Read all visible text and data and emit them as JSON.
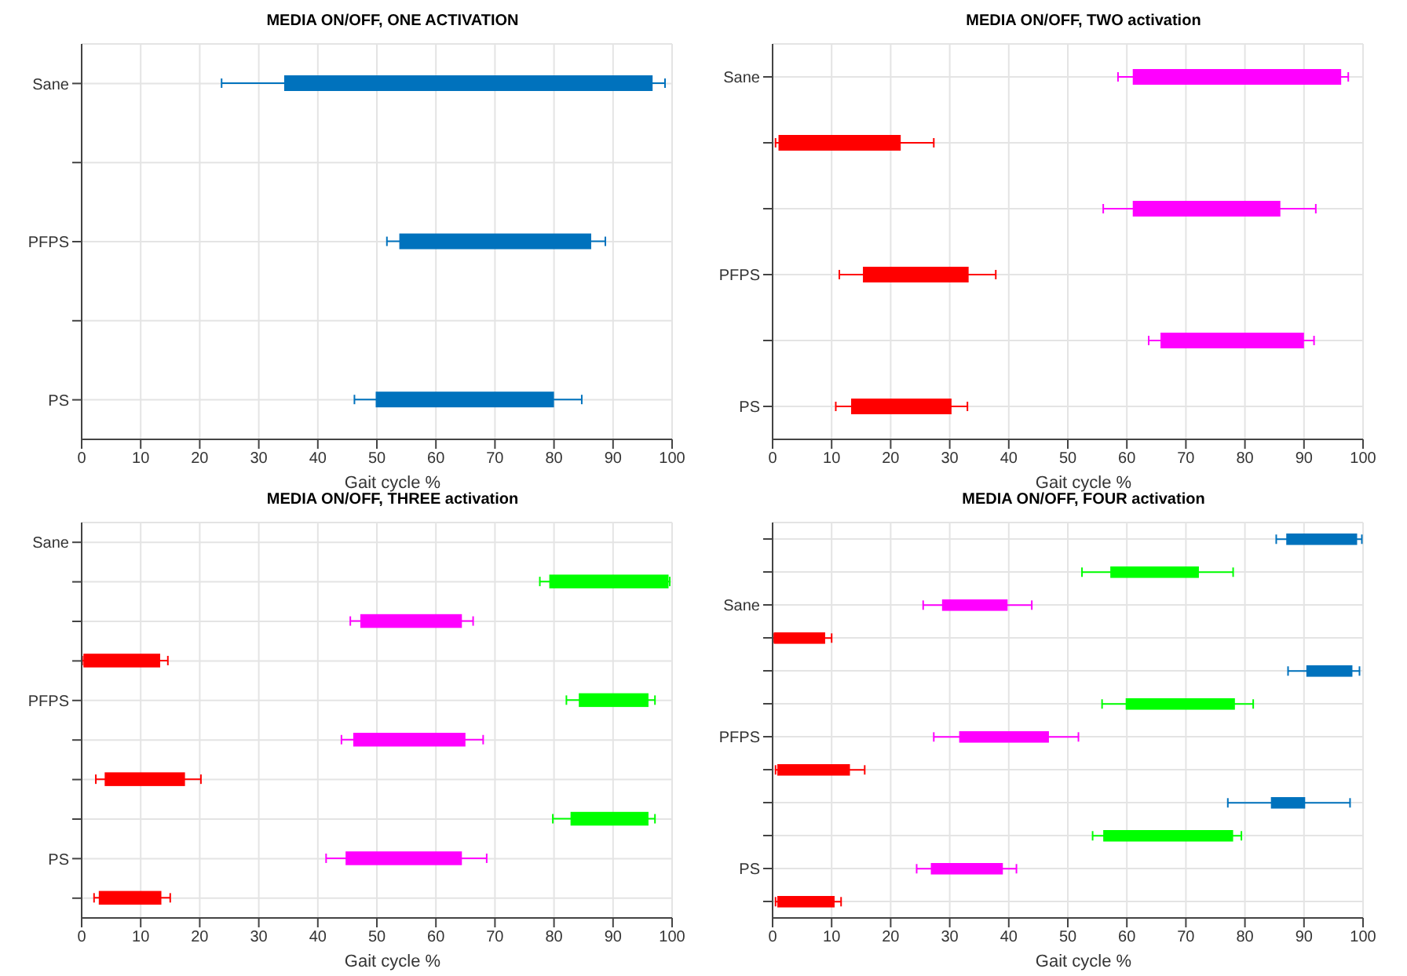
{
  "chart_data": [
    {
      "type": "bar",
      "orientation": "horizontal",
      "title": "MEDIA ON/OFF, ONE ACTIVATION",
      "xlabel": "Gait cycle %",
      "categories": [
        "Sane",
        null,
        "PFPS",
        null,
        "PS"
      ],
      "xlim": [
        0,
        100
      ],
      "xticks": [
        0,
        10,
        20,
        30,
        40,
        50,
        60,
        70,
        80,
        90,
        100
      ],
      "grid": true,
      "series": [
        {
          "color": "#0072bd",
          "base": [
            34.3,
            null,
            53.8,
            null,
            49.8
          ],
          "values": [
            62.4,
            null,
            32.5,
            null,
            30.2
          ],
          "errors": [
            [
              23.7,
              98.8
            ],
            null,
            [
              51.7,
              88.7
            ],
            null,
            [
              46.2,
              84.7
            ]
          ]
        }
      ]
    },
    {
      "type": "bar",
      "orientation": "horizontal",
      "title": "MEDIA ON/OFF, TWO activation",
      "xlabel": "Gait cycle %",
      "categories": [
        "Sane",
        null,
        null,
        "PFPS",
        null,
        "PS"
      ],
      "xlim": [
        0,
        100
      ],
      "xticks": [
        0,
        10,
        20,
        30,
        40,
        50,
        60,
        70,
        80,
        90,
        100
      ],
      "grid": true,
      "series": [
        {
          "color": "#ff0000",
          "base": [
            null,
            1.0,
            null,
            15.3,
            null,
            13.3
          ],
          "values": [
            null,
            20.7,
            null,
            17.9,
            null,
            17.0
          ],
          "errors": [
            null,
            [
              0.5,
              27.3
            ],
            null,
            [
              11.3,
              37.8
            ],
            null,
            [
              10.7,
              33.0
            ]
          ]
        },
        {
          "color": "#ff00ff",
          "base": [
            61.0,
            null,
            61.0,
            null,
            65.7,
            null
          ],
          "values": [
            35.3,
            null,
            25.0,
            null,
            24.3,
            null
          ],
          "errors": [
            [
              58.5,
              97.5
            ],
            null,
            [
              56.0,
              92.0
            ],
            null,
            [
              63.7,
              91.7
            ],
            null
          ]
        }
      ]
    },
    {
      "type": "bar",
      "orientation": "horizontal",
      "title": "MEDIA ON/OFF, THREE activation",
      "xlabel": "Gait cycle %",
      "categories": [
        "Sane",
        null,
        null,
        null,
        "PFPS",
        null,
        null,
        null,
        "PS",
        null
      ],
      "xlim": [
        0,
        100
      ],
      "xticks": [
        0,
        10,
        20,
        30,
        40,
        50,
        60,
        70,
        80,
        90,
        100
      ],
      "grid": true,
      "series": [
        {
          "color": "#ff0000",
          "base": [
            null,
            null,
            null,
            0.3,
            null,
            null,
            3.9,
            null,
            null,
            2.9
          ],
          "values": [
            null,
            null,
            null,
            13.0,
            null,
            null,
            13.6,
            null,
            null,
            10.6
          ],
          "errors": [
            null,
            null,
            null,
            [
              0.1,
              14.6
            ],
            null,
            null,
            [
              2.4,
              20.2
            ],
            null,
            null,
            [
              2.1,
              15.0
            ]
          ]
        },
        {
          "color": "#ff00ff",
          "base": [
            null,
            null,
            47.2,
            null,
            null,
            46.0,
            null,
            null,
            44.7,
            null
          ],
          "values": [
            null,
            null,
            17.2,
            null,
            null,
            19.0,
            null,
            null,
            19.7,
            null
          ],
          "errors": [
            null,
            null,
            [
              45.5,
              66.3
            ],
            null,
            null,
            [
              44.0,
              68.0
            ],
            null,
            null,
            [
              41.4,
              68.6
            ],
            null
          ]
        },
        {
          "color": "#00ff00",
          "base": [
            null,
            79.2,
            null,
            null,
            84.2,
            null,
            null,
            82.8,
            null,
            null
          ],
          "values": [
            null,
            20.2,
            null,
            null,
            11.8,
            null,
            null,
            13.2,
            null,
            null
          ],
          "errors": [
            null,
            [
              77.6,
              99.6
            ],
            null,
            null,
            [
              82.1,
              97.1
            ],
            null,
            null,
            [
              79.8,
              97.1
            ],
            null,
            null
          ]
        }
      ]
    },
    {
      "type": "bar",
      "orientation": "horizontal",
      "title": "MEDIA ON/OFF, FOUR activation",
      "xlabel": "Gait cycle %",
      "categories": [
        null,
        null,
        "Sane",
        null,
        null,
        null,
        "PFPS",
        null,
        null,
        null,
        "PS",
        null
      ],
      "xlim": [
        0,
        100
      ],
      "xticks": [
        0,
        10,
        20,
        30,
        40,
        50,
        60,
        70,
        80,
        90,
        100
      ],
      "grid": true,
      "series": [
        {
          "color": "#ff0000",
          "base": [
            null,
            null,
            null,
            0.2,
            null,
            null,
            null,
            0.8,
            null,
            null,
            null,
            0.8
          ],
          "values": [
            null,
            null,
            null,
            8.7,
            null,
            null,
            null,
            12.3,
            null,
            null,
            null,
            9.7
          ],
          "errors": [
            null,
            null,
            null,
            [
              0.1,
              10.0
            ],
            null,
            null,
            null,
            [
              0.5,
              15.6
            ],
            null,
            null,
            null,
            [
              0.5,
              11.6
            ]
          ]
        },
        {
          "color": "#ff00ff",
          "base": [
            null,
            null,
            28.7,
            null,
            null,
            null,
            31.6,
            null,
            null,
            null,
            26.8,
            null
          ],
          "values": [
            null,
            null,
            11.1,
            null,
            null,
            null,
            15.2,
            null,
            null,
            null,
            12.2,
            null
          ],
          "errors": [
            null,
            null,
            [
              25.5,
              43.9
            ],
            null,
            null,
            null,
            [
              27.3,
              51.8
            ],
            null,
            null,
            null,
            [
              24.4,
              41.3
            ],
            null
          ]
        },
        {
          "color": "#00ff00",
          "base": [
            null,
            57.2,
            null,
            null,
            null,
            59.8,
            null,
            null,
            null,
            56.0,
            null,
            null
          ],
          "values": [
            null,
            15.0,
            null,
            null,
            null,
            18.5,
            null,
            null,
            null,
            22.0,
            null,
            null
          ],
          "errors": [
            null,
            [
              52.4,
              78.0
            ],
            null,
            null,
            null,
            [
              55.8,
              81.4
            ],
            null,
            null,
            null,
            [
              54.2,
              79.4
            ],
            null,
            null
          ]
        },
        {
          "color": "#0072bd",
          "base": [
            87.0,
            null,
            null,
            null,
            90.4,
            null,
            null,
            null,
            84.4,
            null,
            null,
            null
          ],
          "values": [
            12.0,
            null,
            null,
            null,
            7.8,
            null,
            null,
            null,
            5.8,
            null,
            null,
            null
          ],
          "errors": [
            [
              85.3,
              99.8
            ],
            null,
            null,
            null,
            [
              87.3,
              99.4
            ],
            null,
            null,
            null,
            [
              77.1,
              97.8
            ],
            null,
            null,
            null
          ]
        }
      ]
    }
  ]
}
